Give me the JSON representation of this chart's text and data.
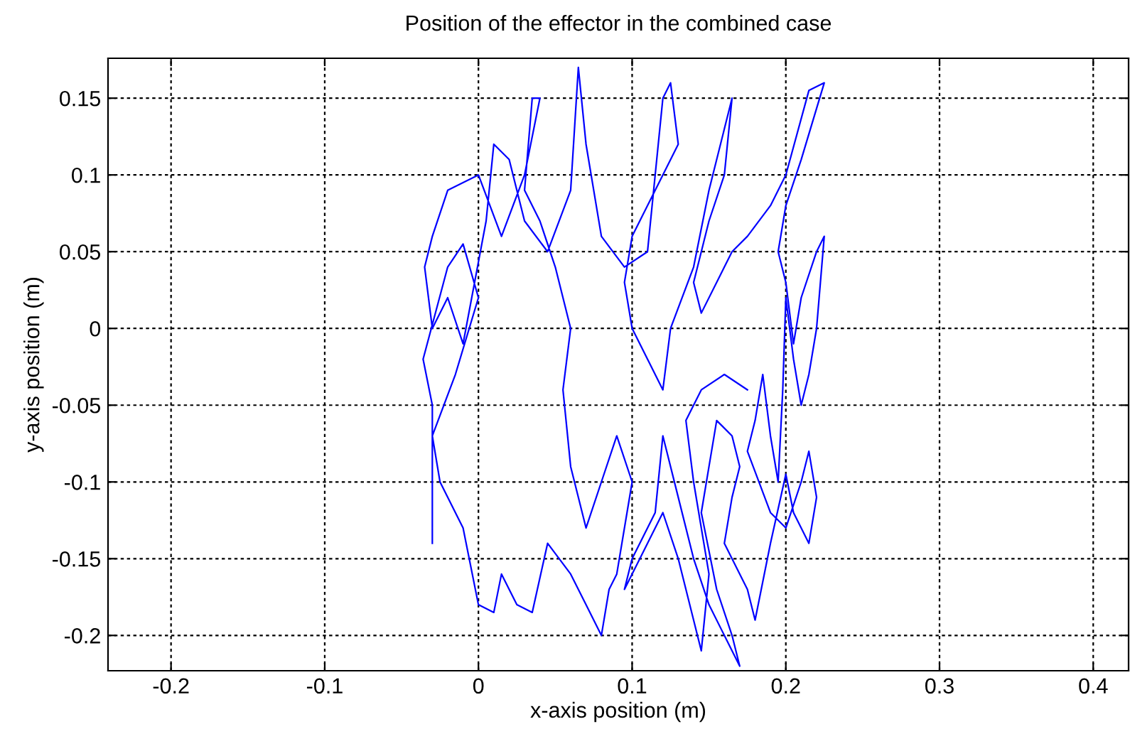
{
  "chart_data": {
    "type": "line",
    "title": "Position of the effector in the combined case",
    "xlabel": "x-axis position (m)",
    "ylabel": "y-axis position (m)",
    "xlim": [
      -0.241,
      0.423
    ],
    "xticks": [
      -0.2,
      -0.1,
      0,
      0.1,
      0.2,
      0.3,
      0.4
    ],
    "ylim": [
      -0.223,
      0.176
    ],
    "yticks": [
      -0.2,
      -0.15,
      -0.1,
      -0.05,
      0,
      0.05,
      0.1,
      0.15
    ],
    "grid": true,
    "line_style": "solid",
    "marker": "none",
    "series": [
      {
        "color": "#0000ff",
        "x": [
          -0.03,
          -0.03,
          -0.036,
          -0.02,
          -0.01,
          0.0,
          -0.015,
          -0.03,
          -0.025,
          -0.01,
          0.0,
          0.01,
          0.015,
          0.025,
          0.035,
          0.045,
          0.06,
          0.07,
          0.08,
          0.085,
          0.09,
          0.1,
          0.09,
          0.08,
          0.07,
          0.06,
          0.055,
          0.06,
          0.05,
          0.04,
          0.03,
          0.035,
          0.04,
          0.03,
          0.015,
          0.0,
          -0.02,
          -0.03,
          -0.035,
          -0.03,
          -0.02,
          -0.01,
          0.005,
          0.01,
          0.02,
          0.03,
          0.045,
          0.06,
          0.065,
          0.07,
          0.08,
          0.095,
          0.11,
          0.12,
          0.125,
          0.13,
          0.115,
          0.1,
          0.095,
          0.1,
          0.11,
          0.12,
          0.125,
          0.14,
          0.15,
          0.16,
          0.165,
          0.16,
          0.15,
          0.14,
          0.145,
          0.16,
          0.165,
          0.175,
          0.19,
          0.2,
          0.215,
          0.225,
          0.21,
          0.2,
          0.195,
          0.2,
          0.205,
          0.21,
          0.22,
          0.225,
          0.22,
          0.215,
          0.21,
          0.205,
          0.2,
          0.198,
          0.195,
          0.19,
          0.185,
          0.18,
          0.175,
          0.19,
          0.2,
          0.21,
          0.215,
          0.22,
          0.215,
          0.205,
          0.2,
          0.19,
          0.18,
          0.175,
          0.16,
          0.165,
          0.17,
          0.165,
          0.155,
          0.15,
          0.145,
          0.155,
          0.165,
          0.17,
          0.16,
          0.15,
          0.14,
          0.13,
          0.12,
          0.115,
          0.1,
          0.095,
          0.11,
          0.12,
          0.13,
          0.14,
          0.145,
          0.15,
          0.14,
          0.135,
          0.145,
          0.16,
          0.175
        ],
        "values": [
          -0.14,
          -0.05,
          -0.02,
          0.04,
          0.055,
          0.02,
          -0.03,
          -0.07,
          -0.1,
          -0.13,
          -0.18,
          -0.185,
          -0.16,
          -0.18,
          -0.185,
          -0.14,
          -0.16,
          -0.18,
          -0.2,
          -0.17,
          -0.16,
          -0.1,
          -0.07,
          -0.1,
          -0.13,
          -0.09,
          -0.04,
          0.0,
          0.04,
          0.07,
          0.09,
          0.15,
          0.15,
          0.1,
          0.06,
          0.1,
          0.09,
          0.06,
          0.04,
          0.0,
          0.02,
          -0.01,
          0.07,
          0.12,
          0.11,
          0.07,
          0.05,
          0.09,
          0.17,
          0.12,
          0.06,
          0.04,
          0.05,
          0.15,
          0.16,
          0.12,
          0.09,
          0.06,
          0.03,
          0.0,
          -0.02,
          -0.04,
          0.0,
          0.04,
          0.09,
          0.13,
          0.15,
          0.1,
          0.07,
          0.03,
          0.01,
          0.04,
          0.05,
          0.06,
          0.08,
          0.1,
          0.155,
          0.16,
          0.11,
          0.08,
          0.05,
          0.03,
          -0.01,
          0.02,
          0.05,
          0.06,
          0.0,
          -0.03,
          -0.05,
          -0.02,
          0.02,
          -0.04,
          -0.1,
          -0.07,
          -0.03,
          -0.06,
          -0.08,
          -0.12,
          -0.13,
          -0.1,
          -0.08,
          -0.11,
          -0.14,
          -0.12,
          -0.095,
          -0.14,
          -0.19,
          -0.17,
          -0.14,
          -0.11,
          -0.09,
          -0.07,
          -0.06,
          -0.09,
          -0.12,
          -0.17,
          -0.2,
          -0.22,
          -0.2,
          -0.18,
          -0.15,
          -0.11,
          -0.07,
          -0.12,
          -0.15,
          -0.17,
          -0.14,
          -0.12,
          -0.15,
          -0.19,
          -0.21,
          -0.16,
          -0.1,
          -0.06,
          -0.04,
          -0.03,
          -0.04
        ]
      }
    ]
  }
}
